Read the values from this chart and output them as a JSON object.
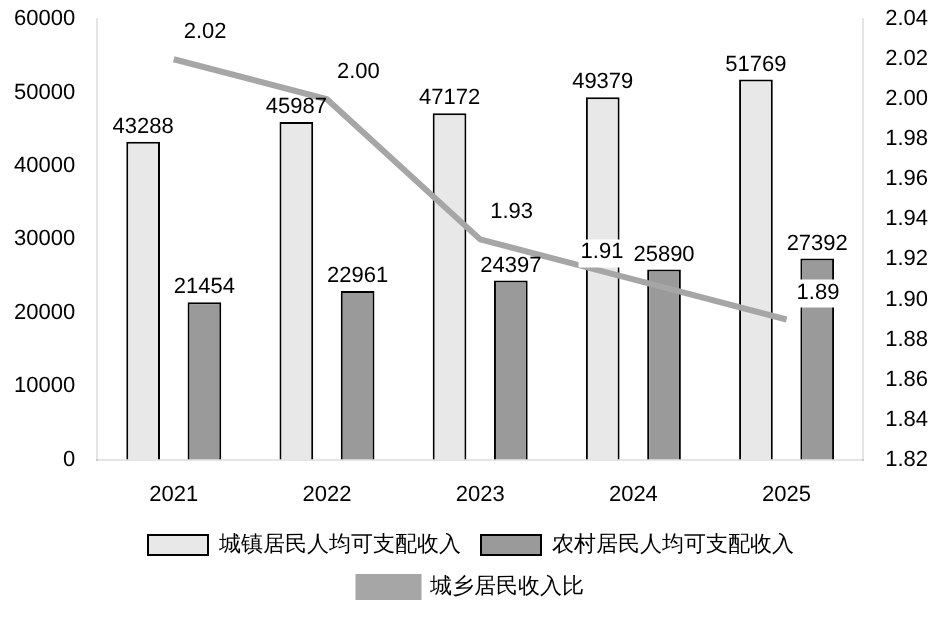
{
  "chart_data": {
    "type": "bar",
    "categories": [
      "2021",
      "2022",
      "2023",
      "2024",
      "2025"
    ],
    "series": [
      {
        "name": "城镇居民人均可支配收入",
        "color": "#e8e8e8",
        "values": [
          43288,
          45987,
          47172,
          49379,
          51769
        ]
      },
      {
        "name": "农村居民人均可支配收入",
        "color": "#9a9a9a",
        "values": [
          21454,
          22961,
          24397,
          25890,
          27392
        ]
      },
      {
        "name": "城乡居民收入比",
        "type": "line",
        "axis": "y2",
        "color": "#a6a6a6",
        "values": [
          2.02,
          2.0,
          1.93,
          1.91,
          1.89
        ],
        "value_labels": [
          "2.02",
          "2.00",
          "1.93",
          "1.91",
          "1.89"
        ]
      }
    ],
    "ylim": [
      0,
      60000
    ],
    "yticks": [
      0,
      10000,
      20000,
      30000,
      40000,
      50000,
      60000
    ],
    "y2lim": [
      1.82,
      2.04
    ],
    "y2ticks": [
      {
        "value": 1.82,
        "label": "1.82"
      },
      {
        "value": 1.84,
        "label": "1.84"
      },
      {
        "value": 1.86,
        "label": "1.86"
      },
      {
        "value": 1.88,
        "label": "1.88"
      },
      {
        "value": 1.9,
        "label": "1.90"
      },
      {
        "value": 1.92,
        "label": "1.92"
      },
      {
        "value": 1.94,
        "label": "1.94"
      },
      {
        "value": 1.96,
        "label": "1.96"
      },
      {
        "value": 1.98,
        "label": "1.98"
      },
      {
        "value": 2,
        "label": "2.00"
      },
      {
        "value": 2.02,
        "label": "2.02"
      },
      {
        "value": 2.04,
        "label": "2.04"
      }
    ],
    "grid": false,
    "legend": "bottom",
    "marker": "none",
    "data_labels": true
  }
}
